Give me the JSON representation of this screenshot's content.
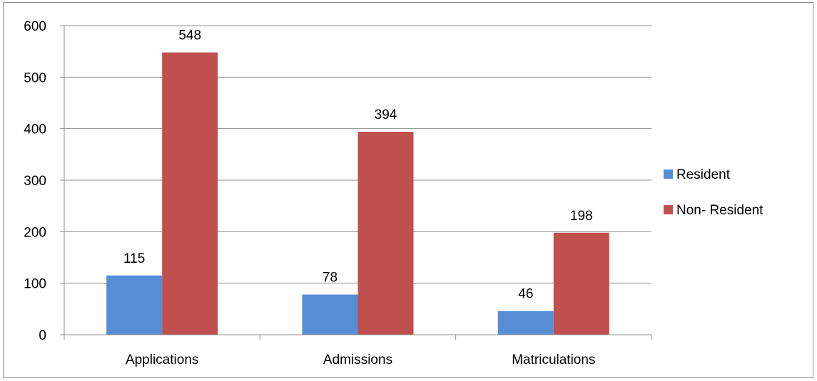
{
  "chart_data": {
    "type": "bar",
    "categories": [
      "Applications",
      "Admissions",
      "Matriculations"
    ],
    "series": [
      {
        "name": "Resident",
        "values": [
          115,
          78,
          46
        ],
        "color": "#558ED5"
      },
      {
        "name": "Non- Resident",
        "values": [
          548,
          394,
          198
        ],
        "color": "#C0504D"
      }
    ],
    "ylim": [
      0,
      600
    ],
    "yticks": [
      0,
      100,
      200,
      300,
      400,
      500,
      600
    ],
    "grid": true,
    "legend_position": "right",
    "data_labels": true
  }
}
